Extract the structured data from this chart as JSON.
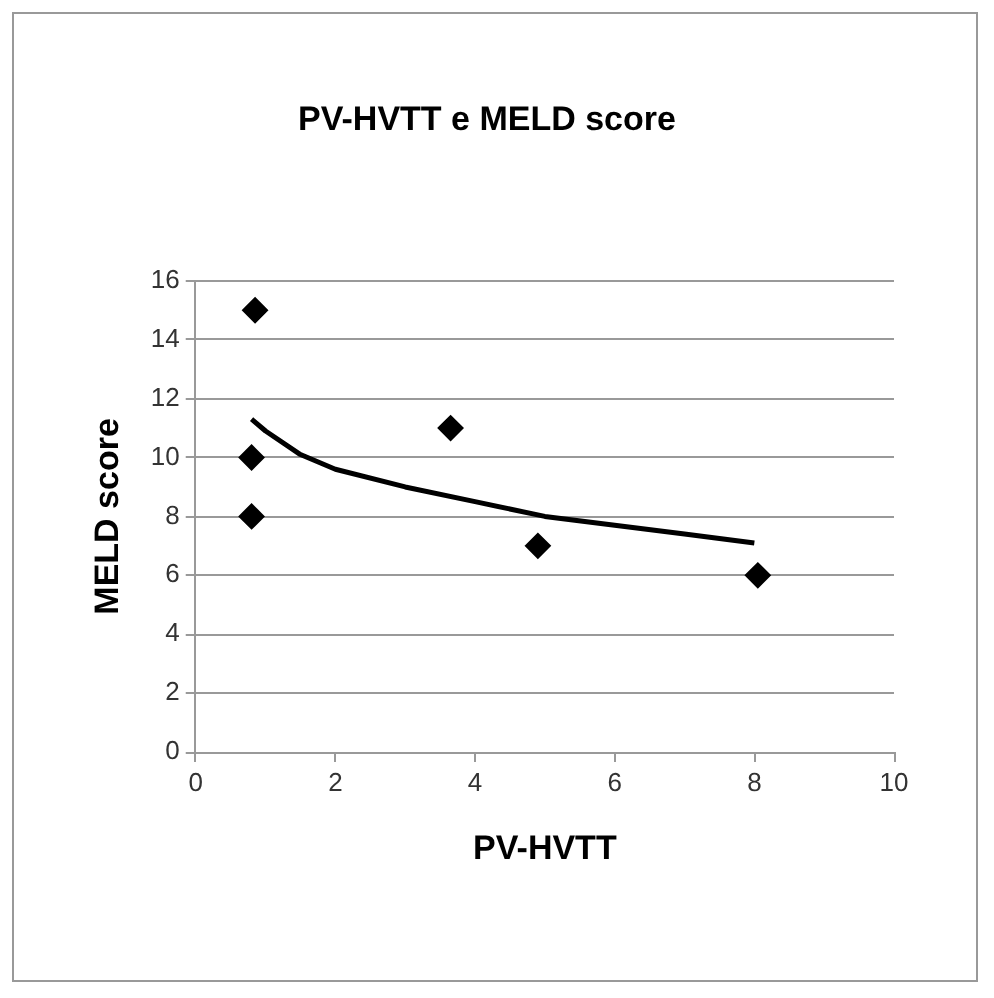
{
  "chart_data": {
    "type": "scatter",
    "title": "PV-HVTT e MELD score",
    "xlabel": "PV-HVTT",
    "ylabel": "MELD score",
    "xlim": [
      0,
      10
    ],
    "xticks": [
      0,
      2,
      4,
      6,
      8,
      10
    ],
    "ylim": [
      0,
      16
    ],
    "yticks": [
      0,
      2,
      4,
      6,
      8,
      10,
      12,
      14,
      16
    ],
    "grid": "y",
    "legend": false,
    "marker": "diamond",
    "series": [
      {
        "type": "scatter",
        "color": "#000000",
        "x": [
          0.85,
          0.8,
          0.8,
          3.65,
          4.9,
          8.05
        ],
        "values": [
          15,
          10,
          8,
          11,
          7,
          6
        ]
      },
      {
        "type": "line",
        "color": "#000000",
        "marker": "none",
        "x": [
          0.8,
          1,
          1.5,
          2,
          3,
          4,
          5,
          6,
          7,
          8
        ],
        "values": [
          11.3,
          10.9,
          10.1,
          9.6,
          9.0,
          8.5,
          8.0,
          7.7,
          7.4,
          7.1
        ]
      }
    ]
  }
}
